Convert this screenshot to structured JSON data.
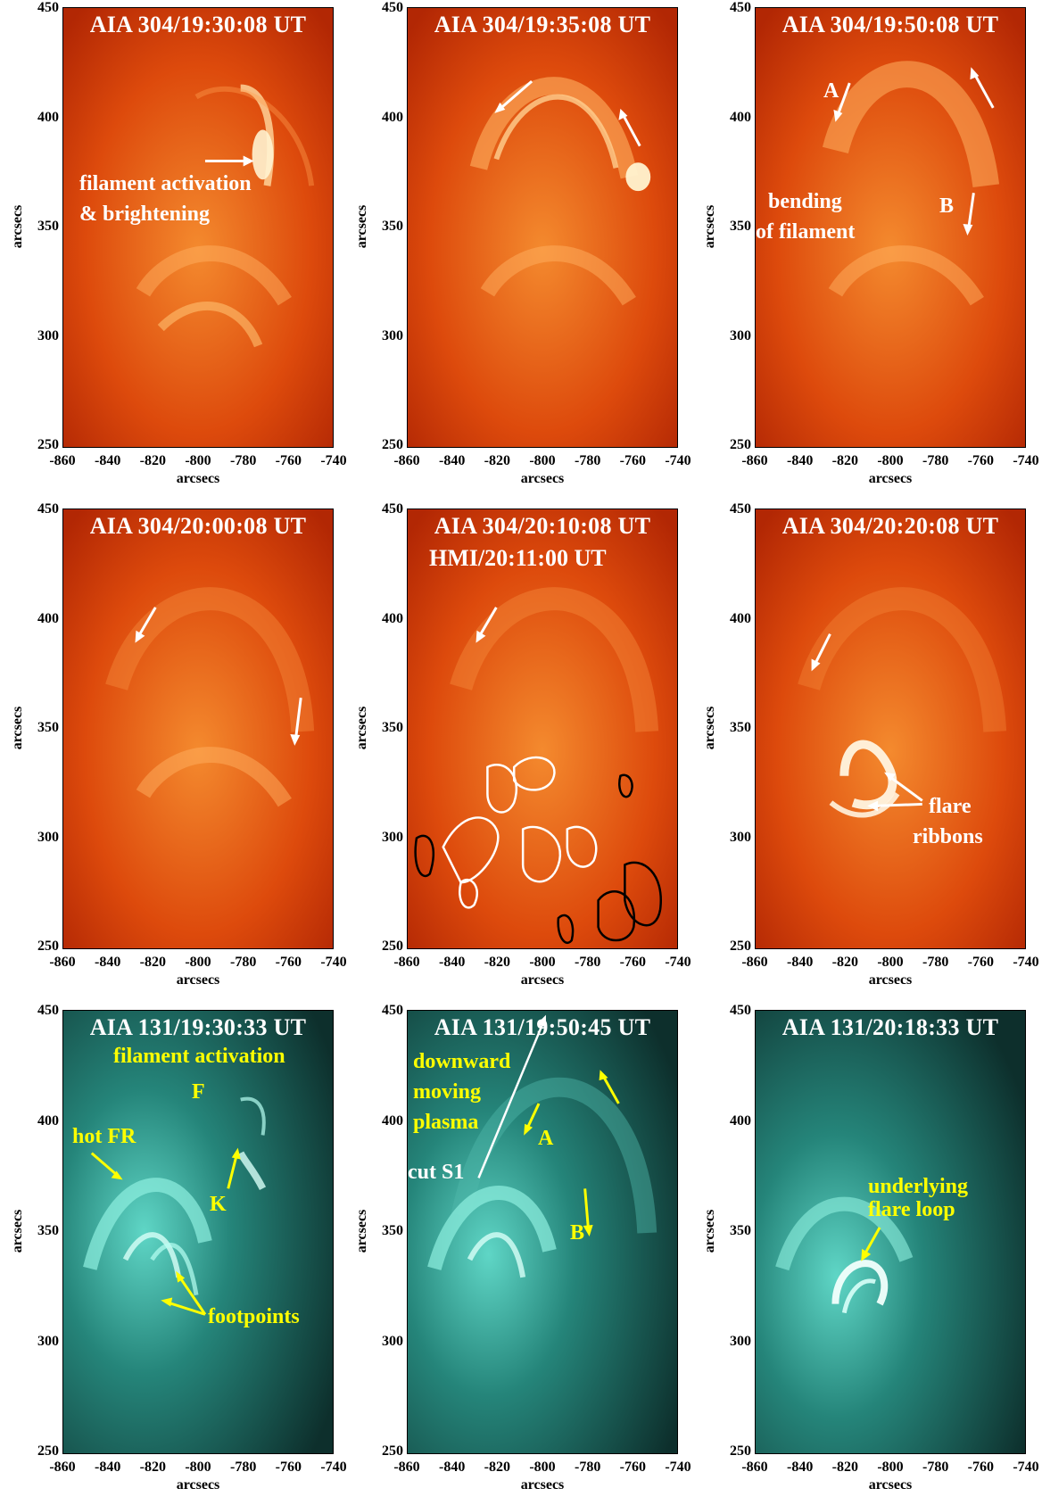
{
  "axis": {
    "xlabel": "arcsecs",
    "ylabel": "arcsecs",
    "xticks": [
      "-860",
      "-840",
      "-820",
      "-800",
      "-780",
      "-760",
      "-740"
    ],
    "yticks": [
      "450",
      "400",
      "350",
      "300",
      "250"
    ]
  },
  "colors": {
    "aia304": "#e0400a",
    "aia131": "#2fa89a",
    "annotation_white": "#ffffff",
    "annotation_yellow": "#ffff00",
    "contour_positive": "#ffffff",
    "contour_negative": "#000000"
  },
  "panels": [
    {
      "id": "p1",
      "title": "AIA 304/19:30:08 UT",
      "annotations": [
        {
          "text": "filament activation"
        },
        {
          "text": "& brightening"
        }
      ]
    },
    {
      "id": "p2",
      "title": "AIA 304/19:35:08 UT",
      "annotations": []
    },
    {
      "id": "p3",
      "title": "AIA 304/19:50:08 UT",
      "annotations": [
        {
          "text": "A"
        },
        {
          "text": "bending"
        },
        {
          "text": "of filament"
        },
        {
          "text": "B"
        }
      ]
    },
    {
      "id": "p4",
      "title": "AIA 304/20:00:08 UT",
      "annotations": []
    },
    {
      "id": "p5",
      "title": "AIA 304/20:10:08 UT",
      "subtitle": "HMI/20:11:00 UT",
      "annotations": []
    },
    {
      "id": "p6",
      "title": "AIA 304/20:20:08 UT",
      "annotations": [
        {
          "text": "flare"
        },
        {
          "text": "ribbons"
        }
      ]
    },
    {
      "id": "p7",
      "title": "AIA 131/19:30:33 UT",
      "annotations": [
        {
          "text": "filament activation"
        },
        {
          "text": "F"
        },
        {
          "text": "hot FR"
        },
        {
          "text": "K"
        },
        {
          "text": "footpoints"
        }
      ]
    },
    {
      "id": "p8",
      "title": "AIA 131/19:50:45 UT",
      "annotations": [
        {
          "text": "downward"
        },
        {
          "text": "moving"
        },
        {
          "text": "plasma"
        },
        {
          "text": "A"
        },
        {
          "text": "cut S1"
        },
        {
          "text": "B"
        }
      ]
    },
    {
      "id": "p9",
      "title": "AIA 131/20:18:33 UT",
      "annotations": [
        {
          "text": "underlying"
        },
        {
          "text": "flare loop"
        }
      ]
    }
  ]
}
